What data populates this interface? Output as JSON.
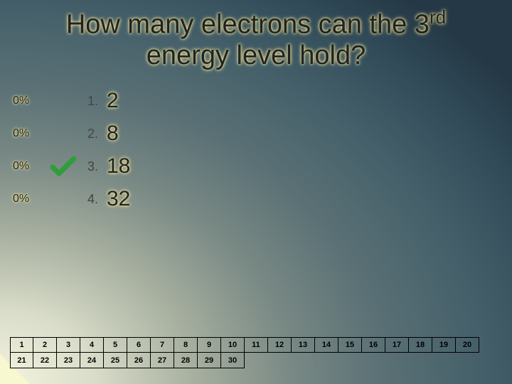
{
  "title_line1": "How many electrons can the 3",
  "title_sup": "rd",
  "title_line2": "energy level hold?",
  "options": [
    {
      "pct": "0%",
      "num": "1.",
      "ans": "2",
      "correct": false
    },
    {
      "pct": "0%",
      "num": "2.",
      "ans": "8",
      "correct": false
    },
    {
      "pct": "0%",
      "num": "3.",
      "ans": "18",
      "correct": true
    },
    {
      "pct": "0%",
      "num": "4.",
      "ans": "32",
      "correct": false
    }
  ],
  "grid": {
    "cols": 20,
    "row1": [
      "1",
      "2",
      "3",
      "4",
      "5",
      "6",
      "7",
      "8",
      "9",
      "10",
      "11",
      "12",
      "13",
      "14",
      "15",
      "16",
      "17",
      "18",
      "19",
      "20"
    ],
    "row2": [
      "21",
      "22",
      "23",
      "24",
      "25",
      "26",
      "27",
      "28",
      "29",
      "30"
    ]
  },
  "colors": {
    "check": "#2e9e3a"
  }
}
